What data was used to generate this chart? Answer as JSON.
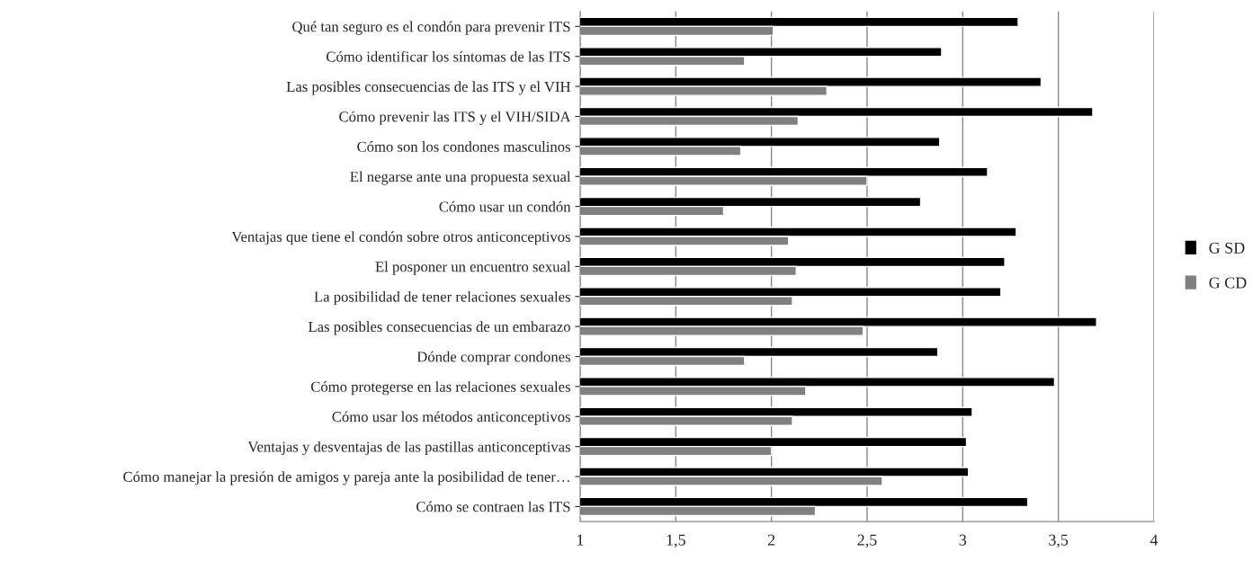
{
  "chart_data": {
    "type": "bar",
    "orientation": "horizontal",
    "categories": [
      "Qué tan seguro es el condón para prevenir ITS",
      "Cómo identificar los síntomas de las ITS",
      "Las posibles consecuencias de las ITS y el VIH",
      "Cómo prevenir las ITS y el VIH/SIDA",
      "Cómo son los condones masculinos",
      "El negarse ante una propuesta sexual",
      "Cómo usar un condón",
      "Ventajas que tiene el condón sobre otros anticonceptivos",
      "El posponer un encuentro sexual",
      "La posibilidad de tener relaciones sexuales",
      "Las posibles consecuencias de un embarazo",
      "Dónde comprar condones",
      "Cómo protegerse en las relaciones sexuales",
      "Cómo usar los métodos anticonceptivos",
      "Ventajas y desventajas de las pastillas anticonceptivas",
      "Cómo manejar la presión de amigos y pareja ante la posibilidad de tener…",
      "Cómo se contraen las ITS"
    ],
    "series": [
      {
        "name": "G SD",
        "color": "#000000",
        "values": [
          3.29,
          2.89,
          3.41,
          3.68,
          2.88,
          3.13,
          2.78,
          3.28,
          3.22,
          3.2,
          3.7,
          2.87,
          3.48,
          3.05,
          3.02,
          3.03,
          3.34
        ]
      },
      {
        "name": "G CD",
        "color": "#808080",
        "values": [
          2.01,
          1.86,
          2.29,
          2.14,
          1.84,
          2.5,
          1.75,
          2.09,
          2.13,
          2.11,
          2.48,
          1.86,
          2.18,
          2.11,
          2.0,
          2.58,
          2.23
        ]
      }
    ],
    "xlim": [
      1,
      4
    ],
    "xticks": [
      {
        "value": 1,
        "label": "1"
      },
      {
        "value": 1.5,
        "label": "1,5"
      },
      {
        "value": 2,
        "label": "2"
      },
      {
        "value": 2.5,
        "label": "2,5"
      },
      {
        "value": 3,
        "label": "3"
      },
      {
        "value": 3.5,
        "label": "3,5"
      },
      {
        "value": 4,
        "label": "4"
      }
    ],
    "grid": "x",
    "legend": "right"
  }
}
